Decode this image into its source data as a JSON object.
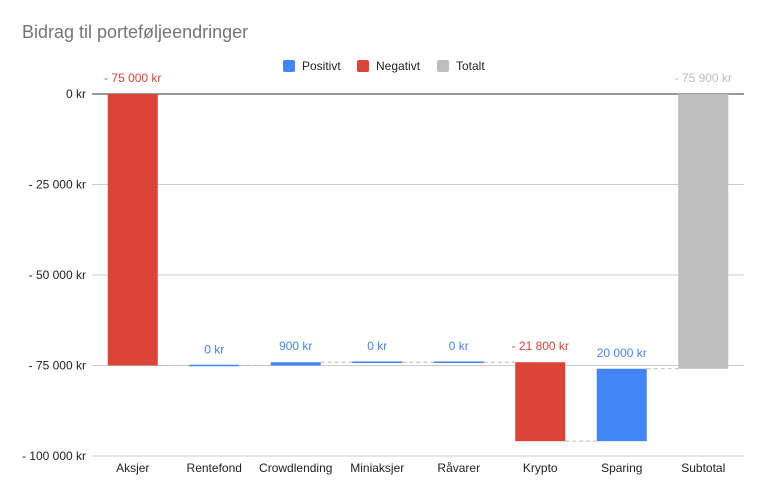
{
  "chart_data": {
    "type": "bar",
    "subtype": "waterfall",
    "title": "Bidrag til porteføljeendringer",
    "xlabel": "",
    "ylabel": "",
    "ylim": [
      -100000,
      0
    ],
    "y_ticks": [
      0,
      -25000,
      -50000,
      -75000,
      -100000
    ],
    "y_tick_labels": [
      "0 kr",
      "- 25 000 kr",
      "- 50 000 kr",
      "- 75 000 kr",
      "- 100 000 kr"
    ],
    "grid": true,
    "legend_position": "top",
    "legend": [
      {
        "label": "Positivt",
        "color": "#4285f4"
      },
      {
        "label": "Negativt",
        "color": "#db4437"
      },
      {
        "label": "Totalt",
        "color": "#bdbdbd"
      }
    ],
    "categories": [
      "Aksjer",
      "Rentefond",
      "Crowdlending",
      "Miniaksjer",
      "Råvarer",
      "Krypto",
      "Sparing",
      "Subtotal"
    ],
    "values": [
      -75000,
      0,
      900,
      0,
      0,
      -21800,
      20000,
      -75900
    ],
    "kinds": [
      "negative",
      "positive",
      "positive",
      "positive",
      "positive",
      "negative",
      "positive",
      "total"
    ],
    "data_labels": [
      "- 75 000 kr",
      "0 kr",
      "900 kr",
      "0 kr",
      "0 kr",
      "- 21 800 kr",
      "20 000 kr",
      "- 75 900 kr"
    ],
    "colors": {
      "positive": "#4285f4",
      "negative": "#db4437",
      "total": "#bdbdbd"
    }
  }
}
